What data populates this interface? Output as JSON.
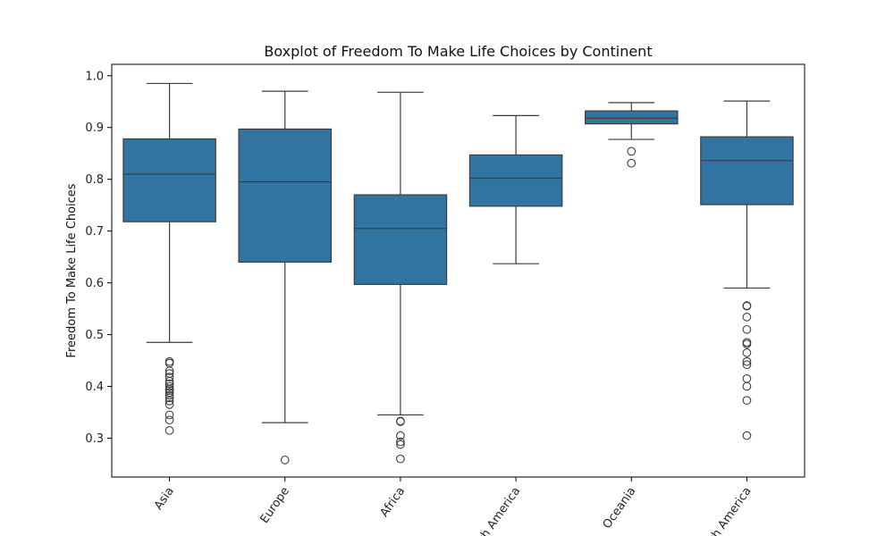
{
  "chart_data": {
    "type": "box",
    "title": "Boxplot of Freedom To Make Life Choices by Continent",
    "xlabel": "",
    "ylabel": "Freedom To Make Life Choices",
    "ylim": [
      0.225,
      1.022
    ],
    "yticks": [
      0.3,
      0.4,
      0.5,
      0.6,
      0.7,
      0.8,
      0.9,
      1.0
    ],
    "ytick_labels": [
      "0.3",
      "0.4",
      "0.5",
      "0.6",
      "0.7",
      "0.8",
      "0.9",
      "1.0"
    ],
    "categories": [
      "Asia",
      "Europe",
      "Africa",
      "North America",
      "Oceania",
      "South America"
    ],
    "colors": {
      "box_fill": "#3274a1",
      "box_line": "#3d3d3d",
      "axis": "#000000"
    },
    "grid": false,
    "legend": false,
    "boxes": [
      {
        "category": "Asia",
        "whisker_low": 0.485,
        "q1": 0.718,
        "median": 0.81,
        "q3": 0.878,
        "whisker_high": 0.985,
        "outliers": [
          0.448,
          0.445,
          0.43,
          0.425,
          0.418,
          0.41,
          0.405,
          0.4,
          0.395,
          0.392,
          0.388,
          0.383,
          0.378,
          0.372,
          0.365,
          0.345,
          0.335,
          0.315
        ]
      },
      {
        "category": "Europe",
        "whisker_low": 0.33,
        "q1": 0.64,
        "median": 0.795,
        "q3": 0.897,
        "whisker_high": 0.97,
        "outliers": [
          0.258
        ]
      },
      {
        "category": "Africa",
        "whisker_low": 0.345,
        "q1": 0.597,
        "median": 0.705,
        "q3": 0.77,
        "whisker_high": 0.968,
        "outliers": [
          0.333,
          0.332,
          0.305,
          0.293,
          0.288,
          0.26
        ]
      },
      {
        "category": "North America",
        "whisker_low": 0.637,
        "q1": 0.748,
        "median": 0.802,
        "q3": 0.847,
        "whisker_high": 0.923,
        "outliers": []
      },
      {
        "category": "Oceania",
        "whisker_low": 0.877,
        "q1": 0.907,
        "median": 0.918,
        "q3": 0.932,
        "whisker_high": 0.948,
        "outliers": [
          0.854,
          0.831
        ]
      },
      {
        "category": "South America",
        "whisker_low": 0.59,
        "q1": 0.751,
        "median": 0.836,
        "q3": 0.882,
        "whisker_high": 0.951,
        "outliers": [
          0.556,
          0.555,
          0.534,
          0.51,
          0.485,
          0.482,
          0.465,
          0.448,
          0.442,
          0.415,
          0.4,
          0.373,
          0.305
        ]
      }
    ]
  }
}
